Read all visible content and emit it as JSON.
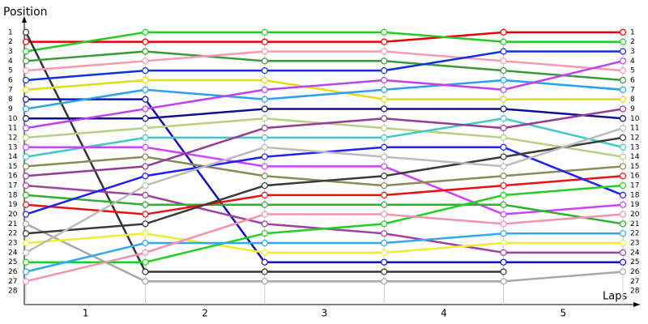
{
  "chart_data": {
    "type": "line",
    "xlabel": "Laps",
    "ylabel": "Position",
    "x": [
      0,
      1,
      2,
      3,
      4,
      5
    ],
    "xlim": [
      0,
      5
    ],
    "xticks": [
      {
        "value": 0.5,
        "label": "1"
      },
      {
        "value": 1.5,
        "label": "2"
      },
      {
        "value": 2.5,
        "label": "3"
      },
      {
        "value": 3.5,
        "label": "4"
      },
      {
        "value": 4.5,
        "label": "5"
      }
    ],
    "ylim": [
      29,
      0
    ],
    "inverted": true,
    "yticks": [
      1,
      2,
      3,
      4,
      5,
      6,
      7,
      8,
      9,
      10,
      11,
      12,
      13,
      14,
      15,
      16,
      17,
      18,
      19,
      20,
      21,
      22,
      23,
      24,
      25,
      26,
      27,
      28
    ],
    "grid": true,
    "series": [
      {
        "color": "#e60000",
        "values": [
          2,
          2,
          2,
          2,
          1,
          1
        ]
      },
      {
        "color": "#22cc22",
        "values": [
          3,
          1,
          1,
          1,
          2,
          2
        ]
      },
      {
        "color": "#333333",
        "values": [
          1,
          26,
          26,
          26,
          26,
          null
        ]
      },
      {
        "color": "#3a9a3a",
        "values": [
          4,
          3,
          4,
          4,
          5,
          6
        ]
      },
      {
        "color": "#f59ab0",
        "values": [
          5,
          4,
          3,
          3,
          4,
          5
        ]
      },
      {
        "color": "#1030e0",
        "values": [
          6,
          5,
          5,
          5,
          3,
          3
        ]
      },
      {
        "color": "#dede10",
        "values": [
          7,
          6,
          6,
          8,
          8,
          8
        ]
      },
      {
        "color": "#1010c0",
        "values": [
          8,
          8,
          25,
          25,
          25,
          25
        ]
      },
      {
        "color": "#2aa0f0",
        "values": [
          9,
          7,
          8,
          7,
          6,
          7
        ]
      },
      {
        "color": "#10108a",
        "values": [
          10,
          10,
          9,
          9,
          9,
          10
        ]
      },
      {
        "color": "#c040f0",
        "values": [
          11,
          9,
          7,
          6,
          7,
          4
        ]
      },
      {
        "color": "#b8d080",
        "values": [
          12,
          11,
          10,
          11,
          12,
          14
        ]
      },
      {
        "color": "#40c8c8",
        "values": [
          14,
          12,
          12,
          12,
          10,
          13
        ]
      },
      {
        "color": "#d040ff",
        "values": [
          13,
          13,
          15,
          15,
          20,
          19
        ]
      },
      {
        "color": "#8a8a58",
        "values": [
          15,
          14,
          16,
          17,
          16,
          15
        ]
      },
      {
        "color": "#963a96",
        "values": [
          16,
          15,
          11,
          10,
          11,
          9
        ]
      },
      {
        "color": "#a040a0",
        "values": [
          17,
          18,
          21,
          22,
          24,
          24
        ]
      },
      {
        "color": "#30b030",
        "values": [
          18,
          19,
          19,
          19,
          19,
          21
        ]
      },
      {
        "color": "#ee1010",
        "values": [
          19,
          20,
          18,
          18,
          17,
          16
        ]
      },
      {
        "color": "#2020f0",
        "values": [
          20,
          16,
          14,
          13,
          13,
          18
        ]
      },
      {
        "color": "#a8a8a8",
        "values": [
          21,
          27,
          27,
          27,
          27,
          26
        ]
      },
      {
        "color": "#3a3a3a",
        "values": [
          22,
          21,
          17,
          16,
          14,
          12
        ]
      },
      {
        "color": "#eeee30",
        "values": [
          23,
          22,
          24,
          24,
          23,
          23
        ]
      },
      {
        "color": "#bbbbbb",
        "values": [
          24,
          17,
          13,
          14,
          15,
          11
        ]
      },
      {
        "color": "#20d020",
        "values": [
          25,
          25,
          22,
          21,
          18,
          17
        ]
      },
      {
        "color": "#30a8f0",
        "values": [
          26,
          23,
          23,
          23,
          22,
          22
        ]
      },
      {
        "color": "#f890b0",
        "values": [
          27,
          24,
          20,
          20,
          21,
          20
        ]
      }
    ]
  }
}
